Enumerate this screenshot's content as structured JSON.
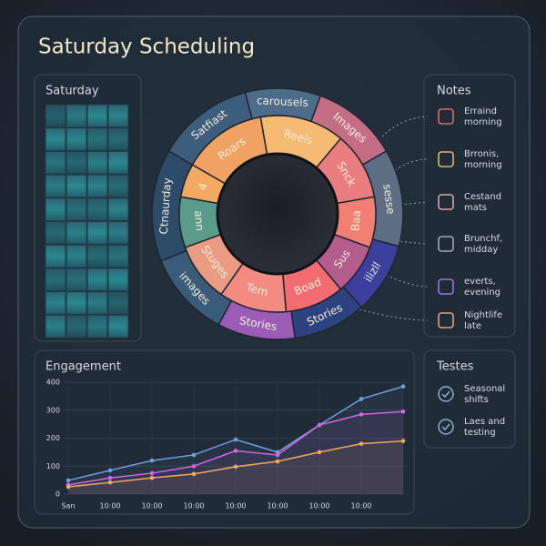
{
  "header": {
    "title": "Saturday Scheduling"
  },
  "heatmap": {
    "title": "Saturday"
  },
  "wheel": {
    "outer": [
      "carousels",
      "Images",
      "sesse",
      "ilizll",
      "Stories",
      "Stories",
      "images",
      "Ctnaurday",
      "Satfiast"
    ],
    "inner": [
      "Reels",
      "Snck",
      "Baa",
      "Sus",
      "Boad",
      "Tem",
      "Stuges",
      "ann",
      "4",
      "Roars"
    ]
  },
  "notes": {
    "title": "Notes",
    "items": [
      {
        "lines": [
          "Erraind",
          "morning"
        ]
      },
      {
        "lines": [
          "Brronis,",
          "morning"
        ]
      },
      {
        "lines": [
          "Cestand",
          "mats"
        ]
      },
      {
        "lines": [
          "Brunchf,",
          "midday"
        ]
      },
      {
        "lines": [
          "everts,",
          "evening"
        ]
      },
      {
        "lines": [
          "Nightlife",
          "late"
        ]
      }
    ]
  },
  "tests": {
    "title": "Testes",
    "items": [
      {
        "lines": [
          "Seasonal",
          "shifts"
        ]
      },
      {
        "lines": [
          "Laes and",
          "testing"
        ]
      }
    ]
  },
  "chart_data": {
    "type": "line",
    "title": "Engagement",
    "categories": [
      "San",
      "10:00",
      "10:00",
      "10:00",
      "10:00",
      "10:00",
      "10:00",
      "10:00",
      null
    ],
    "series": [
      {
        "color": "#6f9fe0",
        "values": [
          49,
          85,
          120,
          140,
          195,
          150,
          247,
          340,
          385
        ]
      },
      {
        "color": "#d466e6",
        "values": [
          33,
          58,
          75,
          100,
          155,
          140,
          247,
          285,
          295
        ]
      },
      {
        "color": "#f2a865",
        "values": [
          26,
          42,
          58,
          72,
          98,
          117,
          150,
          180,
          190
        ]
      }
    ],
    "ylim": [
      0,
      400
    ],
    "yticks": [
      0,
      100,
      200,
      300,
      400
    ],
    "grid": true
  }
}
